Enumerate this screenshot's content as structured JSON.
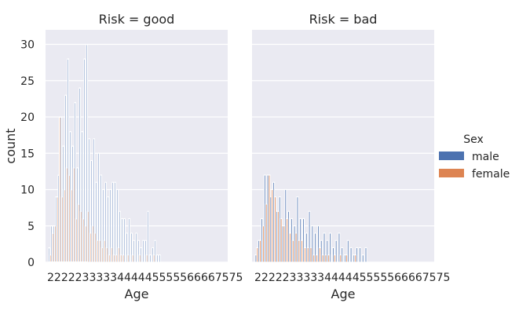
{
  "chart_data": {
    "type": "bar",
    "ylabel": "count",
    "xlabel": "Age",
    "ylim": [
      0,
      32
    ],
    "yticks": [
      "0",
      "5",
      "10",
      "15",
      "20",
      "25",
      "30"
    ],
    "xtick_labels_overlapping": "2222233333444445555566667575",
    "grid": true,
    "legend": {
      "title": "Sex",
      "placement": "right",
      "entries": [
        {
          "label": "male",
          "color": "#4c72b0"
        },
        {
          "label": "female",
          "color": "#dd8452"
        }
      ]
    },
    "panels": [
      {
        "title": "Risk = good",
        "series": [
          {
            "name": "male",
            "color": "#4c72b0",
            "values": [
              2,
              5,
              5,
              9,
              12,
              20,
              16,
              23,
              28,
              18,
              16,
              22,
              13,
              24,
              18,
              28,
              30,
              17,
              14,
              17,
              11,
              15,
              12,
              10,
              11,
              9,
              10,
              11,
              11,
              10,
              7,
              6,
              6,
              4,
              6,
              4,
              3,
              4,
              3,
              2,
              3,
              3,
              7,
              1,
              2,
              3,
              1,
              1
            ]
          },
          {
            "name": "female",
            "color": "#dd8452",
            "values": [
              1,
              4,
              5,
              9,
              20,
              9,
              10,
              13,
              12,
              10,
              13,
              6,
              8,
              7,
              6,
              5,
              7,
              4,
              5,
              4,
              3,
              3,
              2,
              3,
              2,
              1,
              2,
              1,
              1,
              2,
              1,
              1,
              0,
              1,
              0,
              1,
              0,
              0,
              1,
              0,
              0,
              1,
              0,
              0,
              1,
              0,
              0,
              0
            ]
          }
        ]
      },
      {
        "title": "Risk = bad",
        "series": [
          {
            "name": "male",
            "color": "#4c72b0",
            "values": [
              1,
              3,
              6,
              12,
              12,
              9,
              11,
              7,
              9,
              5,
              10,
              7,
              6,
              5,
              9,
              6,
              6,
              4,
              7,
              5,
              4,
              5,
              3,
              4,
              3,
              4,
              2,
              3,
              4,
              2,
              1,
              3,
              2,
              1,
              2,
              2,
              1,
              2
            ]
          },
          {
            "name": "female",
            "color": "#dd8452",
            "values": [
              2,
              3,
              5,
              8,
              12,
              10,
              9,
              7,
              6,
              5,
              6,
              4,
              3,
              4,
              3,
              3,
              2,
              2,
              2,
              1,
              1,
              2,
              1,
              1,
              1,
              0,
              1,
              0,
              1,
              0,
              1,
              0,
              0,
              1,
              0,
              0,
              0,
              0
            ]
          }
        ]
      }
    ]
  }
}
